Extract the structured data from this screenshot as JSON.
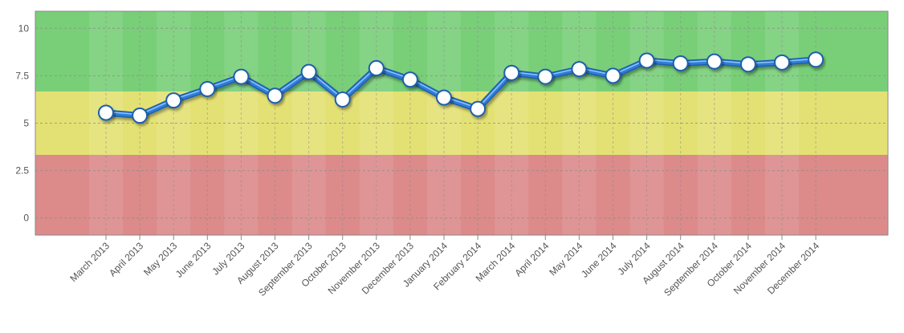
{
  "chart_data": {
    "type": "line",
    "title": "",
    "xlabel": "",
    "ylabel": "",
    "categories": [
      "March 2013",
      "April 2013",
      "May 2013",
      "June 2013",
      "July 2013",
      "August 2013",
      "September 2013",
      "October 2013",
      "November 2013",
      "December 2013",
      "January 2014",
      "February 2014",
      "March 2014",
      "April 2014",
      "May 2014",
      "June 2014",
      "July 2014",
      "August 2014",
      "September 2014",
      "October 2014",
      "November 2014",
      "December 2014"
    ],
    "series": [
      {
        "values": [
          5.55,
          5.4,
          6.2,
          6.8,
          7.45,
          6.45,
          7.7,
          6.25,
          7.9,
          7.3,
          6.35,
          5.75,
          7.65,
          7.45,
          7.85,
          7.5,
          8.3,
          8.15,
          8.25,
          8.1,
          8.2,
          8.35
        ]
      }
    ],
    "ylim": [
      -0.9,
      10.9
    ],
    "yticks": [
      0,
      2.5,
      5,
      7.5,
      10
    ],
    "ytick_labels": [
      "0",
      "2.5",
      "5",
      "7.5",
      "10"
    ],
    "grid": true,
    "bands": [
      {
        "from": -0.9,
        "to": 3.33,
        "color": "#dc8a8a"
      },
      {
        "from": 3.33,
        "to": 6.67,
        "color": "#e3e173"
      },
      {
        "from": 6.67,
        "to": 10.9,
        "color": "#78cf78"
      }
    ],
    "line_color": "#2f7ed8",
    "marker_fill": "#ffffff"
  }
}
